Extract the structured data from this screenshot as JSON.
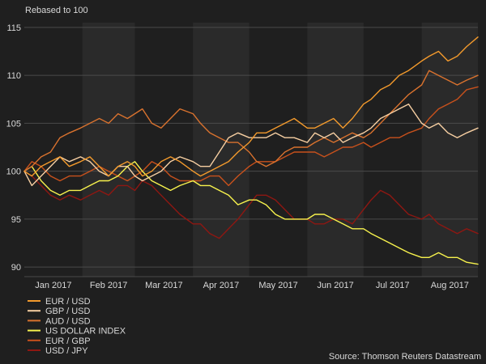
{
  "chart_data": {
    "type": "line",
    "ylabel": "Rebased to 100",
    "source": "Source: Thomson Reuters Datastream",
    "yticks": [
      90,
      95,
      100,
      105,
      110,
      115
    ],
    "ylim": [
      89,
      115.5
    ],
    "x_tick_labels": [
      "Jan 2017",
      "Feb 2017",
      "Mar 2017",
      "Apr 2017",
      "May 2017",
      "Jun 2017",
      "Jul 2017",
      "Aug 2017"
    ],
    "x_months": [
      "2017-01",
      "2017-02",
      "2017-03",
      "2017-04",
      "2017-05",
      "2017-06",
      "2017-07",
      "2017-08"
    ],
    "xlim": [
      "2017-01-01",
      "2017-08-31"
    ],
    "grid": true,
    "legend_position": "bottom-left",
    "colors": {
      "background": "#1f1f1f",
      "band_alt": "#2a2a2a",
      "grid": "#4a4a4a",
      "text": "#d9d9d9"
    },
    "series": [
      {
        "name": "EUR / USD",
        "color": "#f39a2c",
        "x": [
          "2017-01-01",
          "2017-01-05",
          "2017-01-10",
          "2017-01-15",
          "2017-01-20",
          "2017-01-25",
          "2017-01-31",
          "2017-02-05",
          "2017-02-10",
          "2017-02-15",
          "2017-02-20",
          "2017-02-25",
          "2017-03-01",
          "2017-03-05",
          "2017-03-10",
          "2017-03-15",
          "2017-03-20",
          "2017-03-25",
          "2017-04-01",
          "2017-04-05",
          "2017-04-10",
          "2017-04-15",
          "2017-04-20",
          "2017-04-25",
          "2017-05-01",
          "2017-05-05",
          "2017-05-10",
          "2017-05-15",
          "2017-05-20",
          "2017-05-25",
          "2017-06-01",
          "2017-06-05",
          "2017-06-10",
          "2017-06-15",
          "2017-06-20",
          "2017-06-25",
          "2017-07-01",
          "2017-07-05",
          "2017-07-10",
          "2017-07-15",
          "2017-07-20",
          "2017-07-25",
          "2017-08-01",
          "2017-08-05",
          "2017-08-10",
          "2017-08-15",
          "2017-08-20",
          "2017-08-25",
          "2017-08-31"
        ],
        "values": [
          100,
          99.5,
          100.5,
          101,
          101.5,
          100.5,
          101,
          101.5,
          100.5,
          99.5,
          100.5,
          101,
          100.5,
          99.5,
          100,
          101,
          101.5,
          101,
          100,
          99.5,
          100,
          100.5,
          101,
          102,
          103,
          104,
          104,
          104.5,
          105,
          105.5,
          104.5,
          104.5,
          105,
          105.5,
          104.5,
          105.5,
          107,
          107.5,
          108.5,
          109,
          110,
          110.5,
          111.5,
          112,
          112.5,
          111.5,
          112,
          113,
          114
        ]
      },
      {
        "name": "GBP / USD",
        "color": "#f7cfa2",
        "x": [
          "2017-01-01",
          "2017-01-05",
          "2017-01-10",
          "2017-01-15",
          "2017-01-20",
          "2017-01-25",
          "2017-01-31",
          "2017-02-05",
          "2017-02-10",
          "2017-02-15",
          "2017-02-20",
          "2017-02-25",
          "2017-03-01",
          "2017-03-05",
          "2017-03-10",
          "2017-03-15",
          "2017-03-20",
          "2017-03-25",
          "2017-04-01",
          "2017-04-05",
          "2017-04-10",
          "2017-04-15",
          "2017-04-20",
          "2017-04-25",
          "2017-05-01",
          "2017-05-05",
          "2017-05-10",
          "2017-05-15",
          "2017-05-20",
          "2017-05-25",
          "2017-06-01",
          "2017-06-05",
          "2017-06-10",
          "2017-06-15",
          "2017-06-20",
          "2017-06-25",
          "2017-07-01",
          "2017-07-05",
          "2017-07-10",
          "2017-07-15",
          "2017-07-20",
          "2017-07-25",
          "2017-08-01",
          "2017-08-05",
          "2017-08-10",
          "2017-08-15",
          "2017-08-20",
          "2017-08-25",
          "2017-08-31"
        ],
        "values": [
          100,
          98.5,
          99.5,
          100.5,
          101.5,
          101,
          101.5,
          101,
          100,
          99.5,
          100.5,
          100.5,
          99.5,
          99,
          99.5,
          100,
          101,
          101.5,
          101,
          100.5,
          100.5,
          102,
          103.5,
          104,
          103.5,
          103.5,
          103.5,
          104,
          103.5,
          103.5,
          103,
          104,
          103.5,
          104,
          103,
          103.5,
          104,
          104.5,
          105.5,
          106,
          106.5,
          107,
          105,
          104.5,
          105,
          104,
          103.5,
          104,
          104.5
        ]
      },
      {
        "name": "AUD / USD",
        "color": "#d9722e",
        "x": [
          "2017-01-01",
          "2017-01-05",
          "2017-01-10",
          "2017-01-15",
          "2017-01-20",
          "2017-01-25",
          "2017-01-31",
          "2017-02-05",
          "2017-02-10",
          "2017-02-15",
          "2017-02-20",
          "2017-02-25",
          "2017-03-01",
          "2017-03-05",
          "2017-03-10",
          "2017-03-15",
          "2017-03-20",
          "2017-03-25",
          "2017-04-01",
          "2017-04-05",
          "2017-04-10",
          "2017-04-15",
          "2017-04-20",
          "2017-04-25",
          "2017-05-01",
          "2017-05-05",
          "2017-05-10",
          "2017-05-15",
          "2017-05-20",
          "2017-05-25",
          "2017-06-01",
          "2017-06-05",
          "2017-06-10",
          "2017-06-15",
          "2017-06-20",
          "2017-06-25",
          "2017-07-01",
          "2017-07-05",
          "2017-07-10",
          "2017-07-15",
          "2017-07-20",
          "2017-07-25",
          "2017-08-01",
          "2017-08-05",
          "2017-08-10",
          "2017-08-15",
          "2017-08-20",
          "2017-08-25",
          "2017-08-31"
        ],
        "values": [
          100,
          100.5,
          101.5,
          102,
          103.5,
          104,
          104.5,
          105,
          105.5,
          105,
          106,
          105.5,
          106,
          106.5,
          105,
          104.5,
          105.5,
          106.5,
          106,
          105,
          104,
          103.5,
          103,
          103,
          102,
          101,
          100.5,
          101,
          102,
          102.5,
          102.5,
          103,
          103.5,
          103,
          103.5,
          104,
          103.5,
          104,
          105,
          106,
          107,
          108,
          109,
          110.5,
          110,
          109.5,
          109,
          109.5,
          110
        ]
      },
      {
        "name": "US DOLLAR INDEX",
        "color": "#f7f24d",
        "x": [
          "2017-01-01",
          "2017-01-05",
          "2017-01-10",
          "2017-01-15",
          "2017-01-20",
          "2017-01-25",
          "2017-01-31",
          "2017-02-05",
          "2017-02-10",
          "2017-02-15",
          "2017-02-20",
          "2017-02-25",
          "2017-03-01",
          "2017-03-05",
          "2017-03-10",
          "2017-03-15",
          "2017-03-20",
          "2017-03-25",
          "2017-04-01",
          "2017-04-05",
          "2017-04-10",
          "2017-04-15",
          "2017-04-20",
          "2017-04-25",
          "2017-05-01",
          "2017-05-05",
          "2017-05-10",
          "2017-05-15",
          "2017-05-20",
          "2017-05-25",
          "2017-06-01",
          "2017-06-05",
          "2017-06-10",
          "2017-06-15",
          "2017-06-20",
          "2017-06-25",
          "2017-07-01",
          "2017-07-05",
          "2017-07-10",
          "2017-07-15",
          "2017-07-20",
          "2017-07-25",
          "2017-08-01",
          "2017-08-05",
          "2017-08-10",
          "2017-08-15",
          "2017-08-20",
          "2017-08-25",
          "2017-08-31"
        ],
        "values": [
          100,
          100.5,
          99,
          98,
          97.5,
          98,
          98,
          98.5,
          99,
          99,
          99.5,
          100.5,
          101,
          100,
          99,
          98.5,
          98,
          98.5,
          99,
          98.5,
          98.5,
          98,
          97.5,
          96.5,
          97,
          97,
          96.5,
          95.5,
          95,
          95,
          95,
          95.5,
          95.5,
          95,
          94.5,
          94,
          94,
          93.5,
          93,
          92.5,
          92,
          91.5,
          91,
          91,
          91.5,
          91,
          91,
          90.5,
          90.3
        ]
      },
      {
        "name": "EUR / GBP",
        "color": "#c8511c",
        "x": [
          "2017-01-01",
          "2017-01-05",
          "2017-01-10",
          "2017-01-15",
          "2017-01-20",
          "2017-01-25",
          "2017-01-31",
          "2017-02-05",
          "2017-02-10",
          "2017-02-15",
          "2017-02-20",
          "2017-02-25",
          "2017-03-01",
          "2017-03-05",
          "2017-03-10",
          "2017-03-15",
          "2017-03-20",
          "2017-03-25",
          "2017-04-01",
          "2017-04-05",
          "2017-04-10",
          "2017-04-15",
          "2017-04-20",
          "2017-04-25",
          "2017-05-01",
          "2017-05-05",
          "2017-05-10",
          "2017-05-15",
          "2017-05-20",
          "2017-05-25",
          "2017-06-01",
          "2017-06-05",
          "2017-06-10",
          "2017-06-15",
          "2017-06-20",
          "2017-06-25",
          "2017-07-01",
          "2017-07-05",
          "2017-07-10",
          "2017-07-15",
          "2017-07-20",
          "2017-07-25",
          "2017-08-01",
          "2017-08-05",
          "2017-08-10",
          "2017-08-15",
          "2017-08-20",
          "2017-08-25",
          "2017-08-31"
        ],
        "values": [
          100,
          101,
          100.5,
          99.5,
          99,
          99.5,
          99.5,
          100,
          100.5,
          100,
          99.5,
          99,
          99.5,
          100,
          101,
          100.5,
          99.5,
          99,
          99,
          99,
          99.5,
          99.5,
          98.5,
          99.5,
          100.5,
          101,
          101,
          101,
          101.5,
          102,
          102,
          102,
          101.5,
          102,
          102.5,
          102.5,
          103,
          102.5,
          103,
          103.5,
          103.5,
          104,
          104.5,
          105.5,
          106.5,
          107,
          107.5,
          108.5,
          108.8
        ]
      },
      {
        "name": "USD / JPY",
        "color": "#8e1712",
        "x": [
          "2017-01-01",
          "2017-01-05",
          "2017-01-10",
          "2017-01-15",
          "2017-01-20",
          "2017-01-25",
          "2017-01-31",
          "2017-02-05",
          "2017-02-10",
          "2017-02-15",
          "2017-02-20",
          "2017-02-25",
          "2017-03-01",
          "2017-03-05",
          "2017-03-10",
          "2017-03-15",
          "2017-03-20",
          "2017-03-25",
          "2017-04-01",
          "2017-04-05",
          "2017-04-10",
          "2017-04-15",
          "2017-04-20",
          "2017-04-25",
          "2017-05-01",
          "2017-05-05",
          "2017-05-10",
          "2017-05-15",
          "2017-05-20",
          "2017-05-25",
          "2017-06-01",
          "2017-06-05",
          "2017-06-10",
          "2017-06-15",
          "2017-06-20",
          "2017-06-25",
          "2017-07-01",
          "2017-07-05",
          "2017-07-10",
          "2017-07-15",
          "2017-07-20",
          "2017-07-25",
          "2017-08-01",
          "2017-08-05",
          "2017-08-10",
          "2017-08-15",
          "2017-08-20",
          "2017-08-25",
          "2017-08-31"
        ],
        "values": [
          100,
          99.5,
          98.5,
          97.5,
          97,
          97.5,
          97,
          97.5,
          98,
          97.5,
          98.5,
          98.5,
          98,
          99,
          98.5,
          97.5,
          96.5,
          95.5,
          94.5,
          94.5,
          93.5,
          93,
          94,
          95,
          96.5,
          97.5,
          97.5,
          97,
          96,
          95,
          95,
          94.5,
          94.5,
          95,
          95,
          94.5,
          96,
          97,
          98,
          97.5,
          96.5,
          95.5,
          95,
          95.5,
          94.5,
          94,
          93.5,
          94,
          93.5
        ]
      }
    ]
  }
}
